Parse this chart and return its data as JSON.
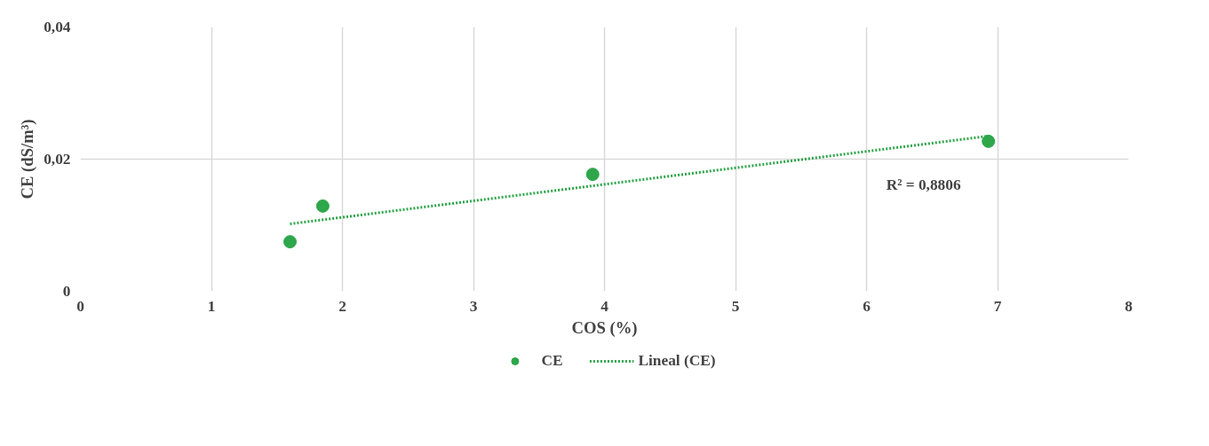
{
  "chart_data": {
    "type": "scatter",
    "xlabel": "COS (%)",
    "ylabel": "CE (dS/m³)",
    "xlim": [
      0,
      8
    ],
    "xticks": [
      0,
      1,
      2,
      3,
      4,
      5,
      6,
      7,
      8
    ],
    "ylim": [
      0,
      0.04
    ],
    "yticks": [
      {
        "value": 0,
        "label": "0"
      },
      {
        "value": 0.02,
        "label": "0,02"
      },
      {
        "value": 0.04,
        "label": "0,04"
      }
    ],
    "grid": true,
    "legend": "bottom",
    "marker": "circle",
    "series": [
      {
        "name": "CE",
        "color": "#2ea64a",
        "x": [
          1.6,
          1.85,
          3.91,
          6.93
        ],
        "values": [
          0.0075,
          0.0129,
          0.0177,
          0.0227
        ]
      },
      {
        "name": "Lineal (CE)",
        "type": "line",
        "line_style": "dotted",
        "marker": "none",
        "color": "#2ea64a",
        "x": [
          1.6,
          6.93
        ],
        "values": [
          0.0102,
          0.0235
        ]
      }
    ],
    "annotations": [
      "R² = 0,8806"
    ]
  }
}
